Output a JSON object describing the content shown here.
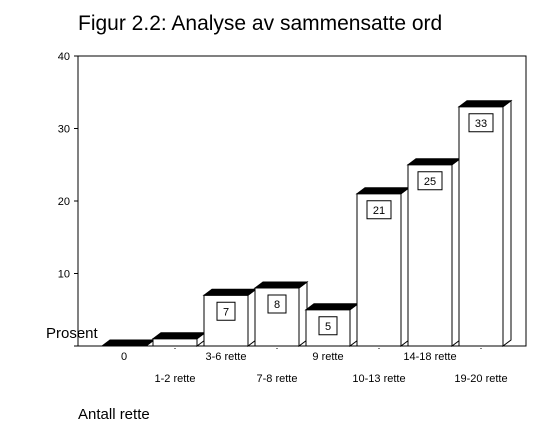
{
  "chart_data": {
    "type": "bar",
    "title": "Figur 2.2: Analyse av sammensatte ord",
    "xlabel": "Antall rette",
    "ylabel": "Prosent",
    "categories": [
      "0",
      "1-2 rette",
      "3-6 rette",
      "7-8 rette",
      "9 rette",
      "10-13 rette",
      "14-18 rette",
      "19-20 rette"
    ],
    "values": [
      0,
      1,
      7,
      8,
      5,
      21,
      25,
      33
    ],
    "data_labels": [
      "",
      "",
      "7",
      "8",
      "5",
      "21",
      "25",
      "33"
    ],
    "ylim": [
      0,
      40
    ],
    "yticks": [
      "0",
      "10",
      "20",
      "30",
      "40"
    ],
    "grid": false,
    "legend": "none",
    "bar_fill": "#ffffff",
    "bar_top_color": "#000000"
  }
}
